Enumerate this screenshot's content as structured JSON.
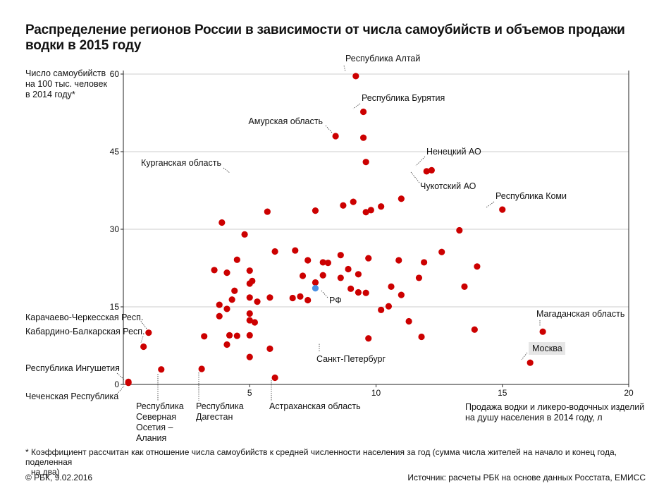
{
  "title": "Распределение регионов России в зависимости от числа самоубийств и объемов продажи водки в 2015 году",
  "footnote": {
    "line1": "* Коэффициент рассчитан как отношение числа самоубийств к средней численности населения за год (сумма числа жителей на начало и конец года, поделенная",
    "line2": "на два)"
  },
  "copyright": "© РБК, 9.02.2016",
  "source": "Источник: расчеты РБК на основе данных Росстата, ЕМИСС",
  "colors": {
    "region": "#cc0000",
    "russia": "#4a90e2",
    "grid": "#cccccc",
    "axis": "#222222",
    "leader": "#333333",
    "highlight_bg": "#e6e6e6"
  },
  "chart_data": {
    "type": "scatter",
    "title": "Распределение регионов России в зависимости от числа самоубийств и объемов продажи водки в 2015 году",
    "xlabel_lines": [
      "Продажа водки и ликеро-водочных изделий",
      "на душу населения в 2014 году, л"
    ],
    "ylabel_lines": [
      "Число самоубийств",
      "на 100 тыс. человек",
      "в 2014 году*"
    ],
    "xlim": [
      0,
      20
    ],
    "ylim": [
      0,
      60
    ],
    "xticks": [
      5,
      10,
      15,
      20
    ],
    "yticks": [
      0,
      15,
      30,
      45,
      60
    ],
    "grid": "horizontal",
    "points": [
      [
        0.2,
        0.3
      ],
      [
        0.2,
        0.5
      ],
      [
        0.8,
        7.3
      ],
      [
        1.0,
        10.0
      ],
      [
        1.5,
        2.9
      ],
      [
        3.1,
        3.0
      ],
      [
        3.2,
        9.3
      ],
      [
        3.6,
        22.1
      ],
      [
        3.8,
        13.2
      ],
      [
        3.8,
        15.4
      ],
      [
        3.9,
        31.3
      ],
      [
        4.1,
        21.6
      ],
      [
        4.1,
        14.6
      ],
      [
        4.1,
        7.7
      ],
      [
        4.2,
        9.5
      ],
      [
        4.3,
        16.4
      ],
      [
        4.4,
        18.1
      ],
      [
        4.5,
        24.1
      ],
      [
        4.5,
        9.4
      ],
      [
        4.8,
        29.0
      ],
      [
        5.0,
        22.0
      ],
      [
        5.0,
        19.5
      ],
      [
        5.0,
        16.8
      ],
      [
        5.0,
        13.7
      ],
      [
        5.0,
        12.4
      ],
      [
        5.0,
        9.5
      ],
      [
        5.0,
        5.3
      ],
      [
        5.1,
        20.0
      ],
      [
        5.2,
        12.0
      ],
      [
        5.3,
        16.0
      ],
      [
        5.7,
        33.4
      ],
      [
        5.8,
        16.8
      ],
      [
        5.8,
        6.9
      ],
      [
        6.0,
        1.3
      ],
      [
        6.0,
        25.7
      ],
      [
        6.7,
        16.7
      ],
      [
        6.8,
        25.9
      ],
      [
        7.0,
        17.0
      ],
      [
        7.1,
        21.0
      ],
      [
        7.3,
        16.3
      ],
      [
        7.3,
        24.0
      ],
      [
        7.6,
        33.6
      ],
      [
        7.6,
        19.7
      ],
      [
        7.9,
        23.6
      ],
      [
        7.9,
        21.1
      ],
      [
        8.1,
        23.5
      ],
      [
        8.4,
        48.0
      ],
      [
        8.6,
        25.0
      ],
      [
        8.6,
        20.6
      ],
      [
        8.7,
        34.6
      ],
      [
        8.9,
        22.3
      ],
      [
        9.0,
        18.5
      ],
      [
        9.1,
        35.3
      ],
      [
        9.3,
        21.3
      ],
      [
        9.3,
        17.8
      ],
      [
        9.5,
        47.7
      ],
      [
        9.6,
        43.0
      ],
      [
        9.6,
        33.3
      ],
      [
        9.6,
        17.7
      ],
      [
        9.7,
        24.4
      ],
      [
        9.7,
        8.9
      ],
      [
        9.8,
        33.7
      ],
      [
        10.2,
        34.4
      ],
      [
        10.2,
        14.4
      ],
      [
        10.5,
        15.1
      ],
      [
        10.6,
        18.9
      ],
      [
        10.9,
        24.0
      ],
      [
        11.0,
        17.3
      ],
      [
        11.0,
        35.9
      ],
      [
        11.3,
        12.2
      ],
      [
        11.7,
        20.6
      ],
      [
        11.8,
        9.2
      ],
      [
        11.9,
        23.6
      ],
      [
        12.0,
        41.2
      ],
      [
        12.2,
        41.4
      ],
      [
        12.6,
        25.6
      ],
      [
        13.3,
        29.8
      ],
      [
        13.5,
        18.9
      ],
      [
        13.9,
        10.6
      ],
      [
        14.0,
        22.8
      ],
      [
        15.0,
        33.8
      ],
      [
        16.1,
        4.2
      ],
      [
        16.6,
        10.2
      ]
    ],
    "special_points": [
      {
        "id": "altai",
        "x": 9.2,
        "y": 59.6
      },
      {
        "id": "buryatia",
        "x": 9.5,
        "y": 52.7
      },
      {
        "id": "russia",
        "x": 7.6,
        "y": 18.6
      }
    ],
    "annotations": [
      {
        "text": "Республика Алтай",
        "x": 9.2,
        "y": 59.6
      },
      {
        "text": "Республика Бурятия",
        "x": 9.5,
        "y": 52.7
      },
      {
        "text": "Амурская область",
        "x": 8.4,
        "y": 48.0
      },
      {
        "text": "Ненецкий АО",
        "x": 12.2,
        "y": 41.4
      },
      {
        "text": "Чукотский АО",
        "x": 12.0,
        "y": 41.2
      },
      {
        "text": "Курганская область",
        "x": 4.4,
        "y": 40.2
      },
      {
        "text": "Республика Коми",
        "x": 15.0,
        "y": 33.8
      },
      {
        "text": "РФ",
        "x": 7.6,
        "y": 18.6
      },
      {
        "text": "Карачаево-Черкесская Респ.",
        "x": 1.0,
        "y": 10.0
      },
      {
        "text": "Магаданская область",
        "x": 16.6,
        "y": 10.2
      },
      {
        "text": "Кабардино-Балкарская Респ.",
        "x": 0.8,
        "y": 7.3
      },
      {
        "text": "Санкт-Петербург",
        "x": 7.9,
        "y": 8.6
      },
      {
        "text": "Москва",
        "x": 16.1,
        "y": 4.2
      },
      {
        "text": "Республика Ингушетия",
        "x": 0.2,
        "y": 0.5
      },
      {
        "text": "Чеченская Республика",
        "x": 0.2,
        "y": 0.3
      },
      {
        "text": "Республика Северная Осетия – Алания",
        "x": 1.5,
        "y": 2.9
      },
      {
        "text": "Республика Дагестан",
        "x": 3.1,
        "y": 3.0
      },
      {
        "text": "Астраханская область",
        "x": 6.0,
        "y": 1.3
      }
    ]
  }
}
